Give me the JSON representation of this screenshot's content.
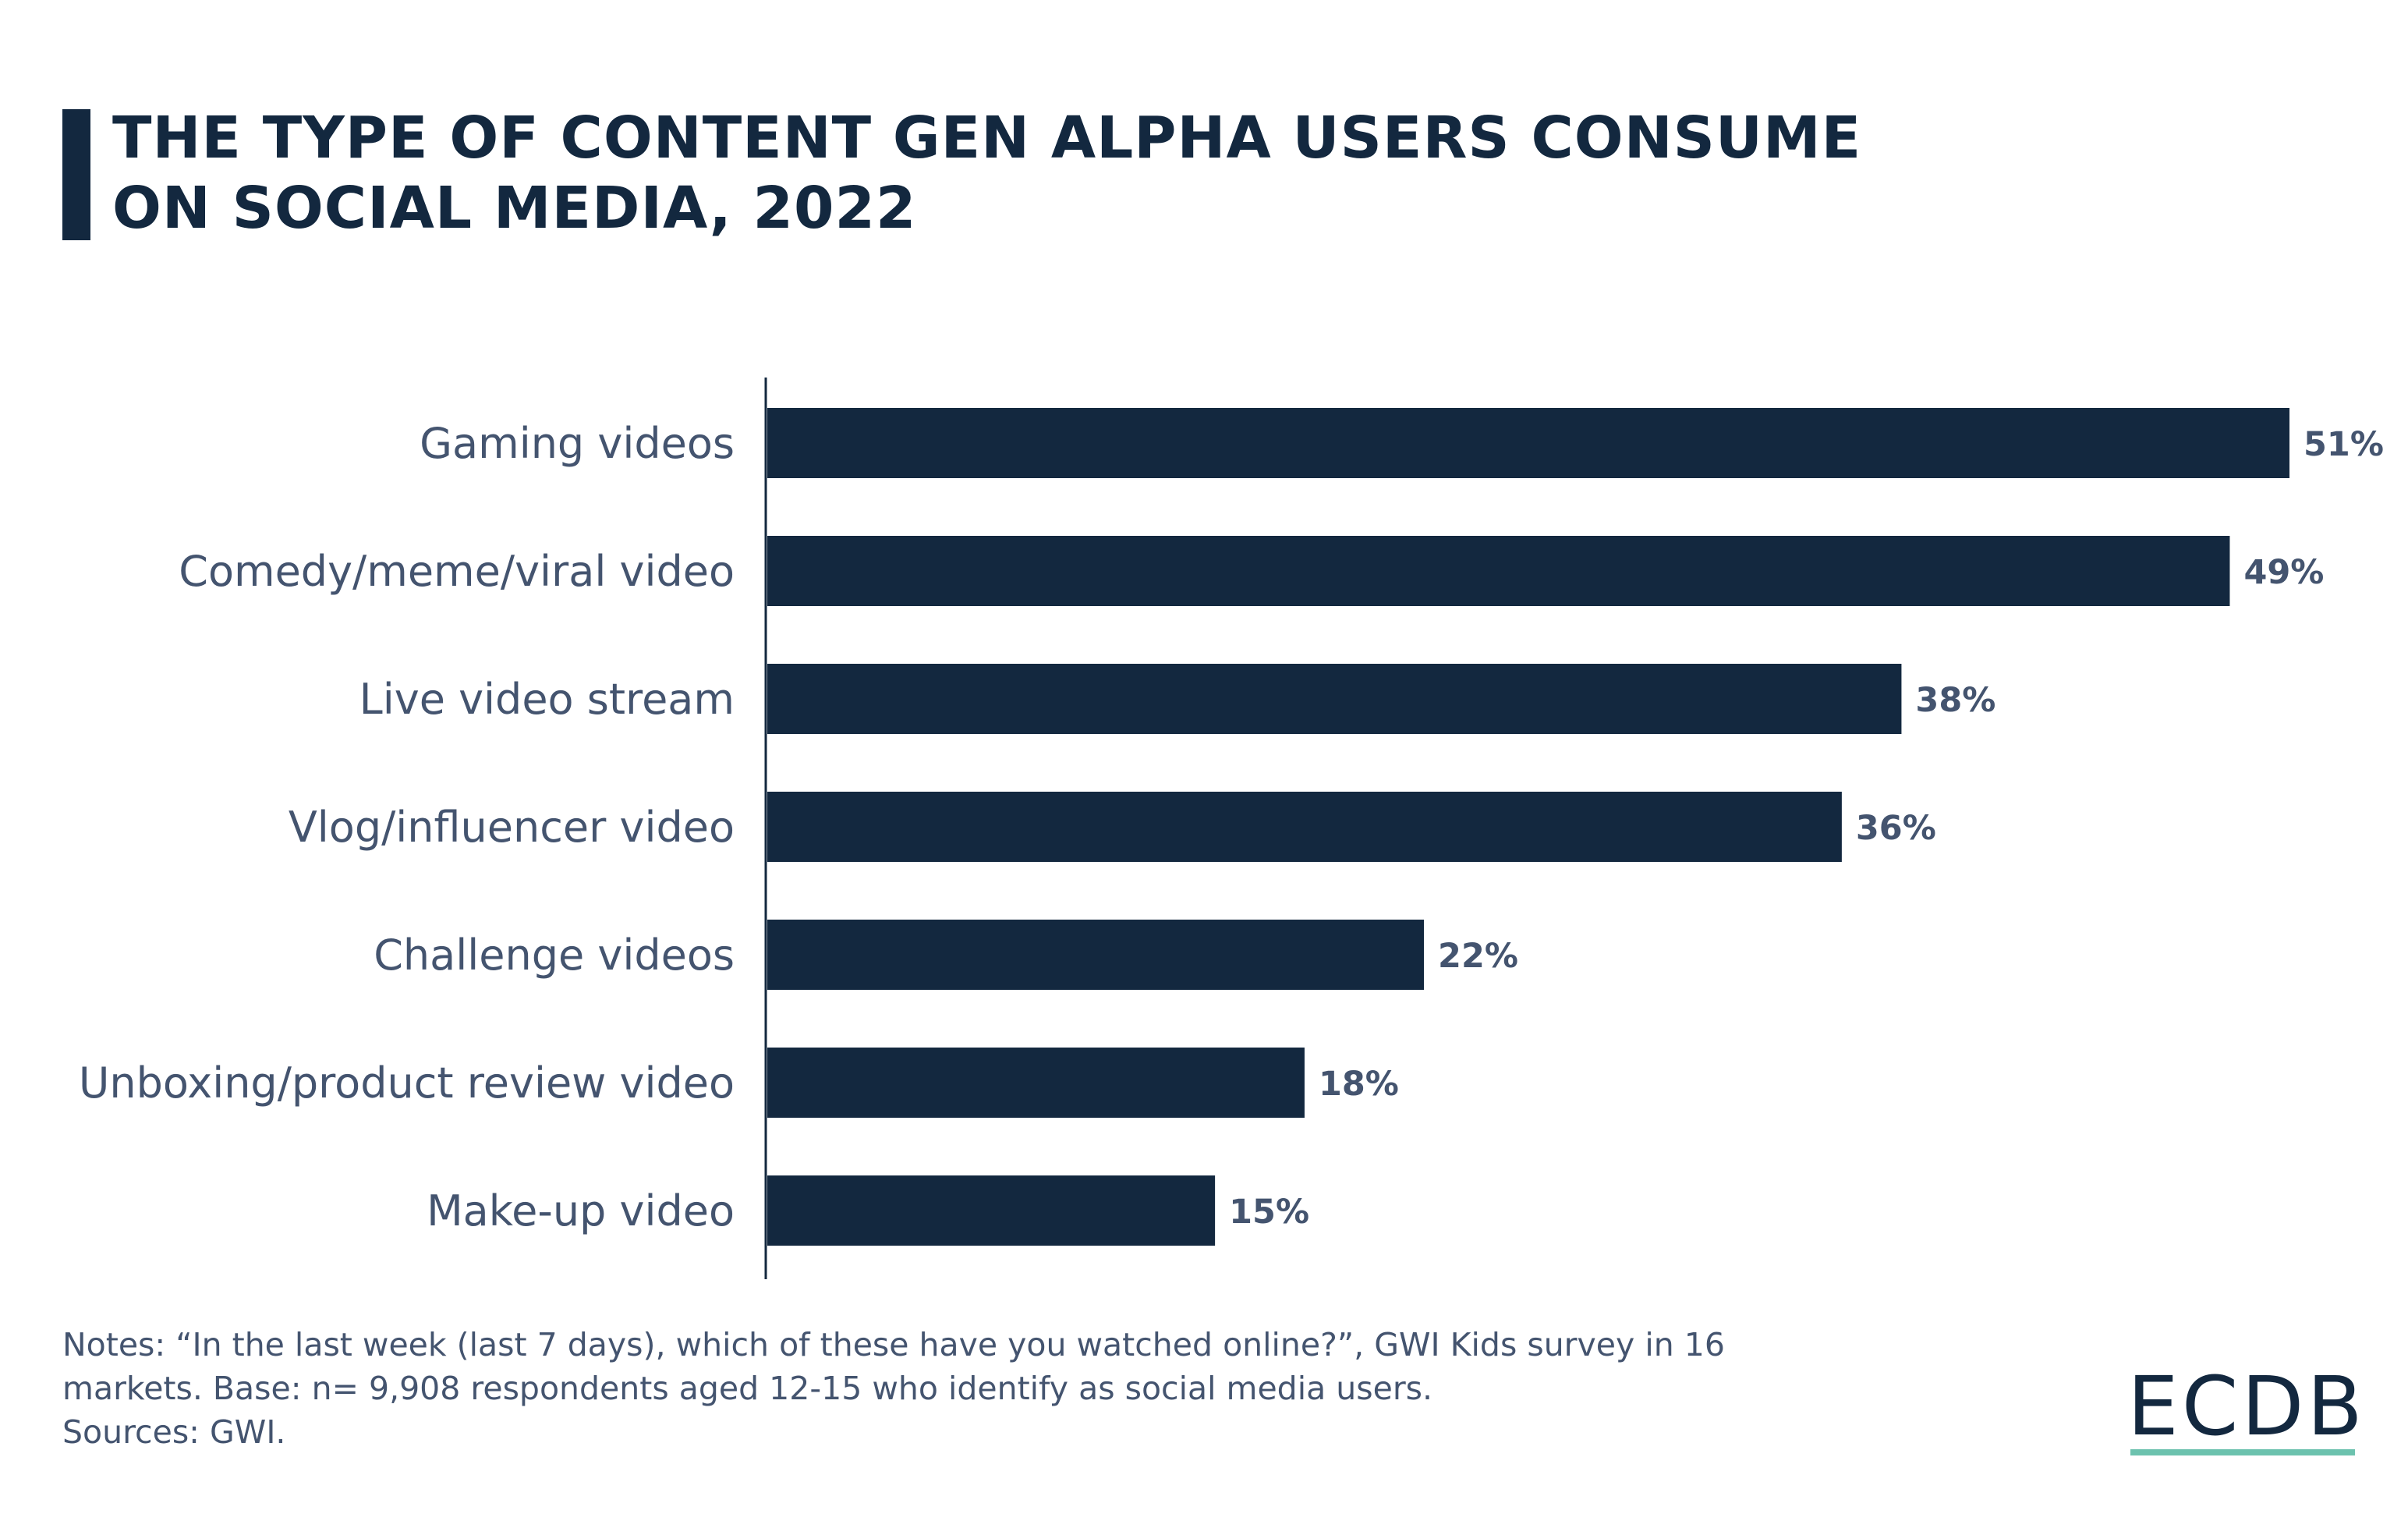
{
  "title": {
    "line1": "THE TYPE OF CONTENT GEN ALPHA USERS CONSUME",
    "line2": "ON SOCIAL MEDIA, 2022"
  },
  "chart_data": {
    "type": "bar",
    "orientation": "horizontal",
    "categories": [
      "Gaming videos",
      "Comedy/meme/viral video",
      "Live video stream",
      "Vlog/influencer video",
      "Challenge videos",
      "Unboxing/product review video",
      "Make-up video"
    ],
    "values": [
      51,
      49,
      38,
      36,
      22,
      18,
      15
    ],
    "data_labels": [
      "51%",
      "49%",
      "38%",
      "36%",
      "22%",
      "18%",
      "15%"
    ],
    "unit": "%",
    "xlim": [
      0,
      51
    ],
    "grid": false,
    "legend": "none",
    "bar_color": "#13283f",
    "label_color": "#44546f"
  },
  "notes": {
    "line1": "Notes: “In the last week (last 7 days), which of these have you watched online?”, GWI Kids survey in 16",
    "line2": "markets. Base: n= 9,908 respondents aged 12-15 who identify as social media users.",
    "line3": "Sources: GWI."
  },
  "logo": {
    "text": "ECDB",
    "accent_color": "#6cc2ae"
  }
}
